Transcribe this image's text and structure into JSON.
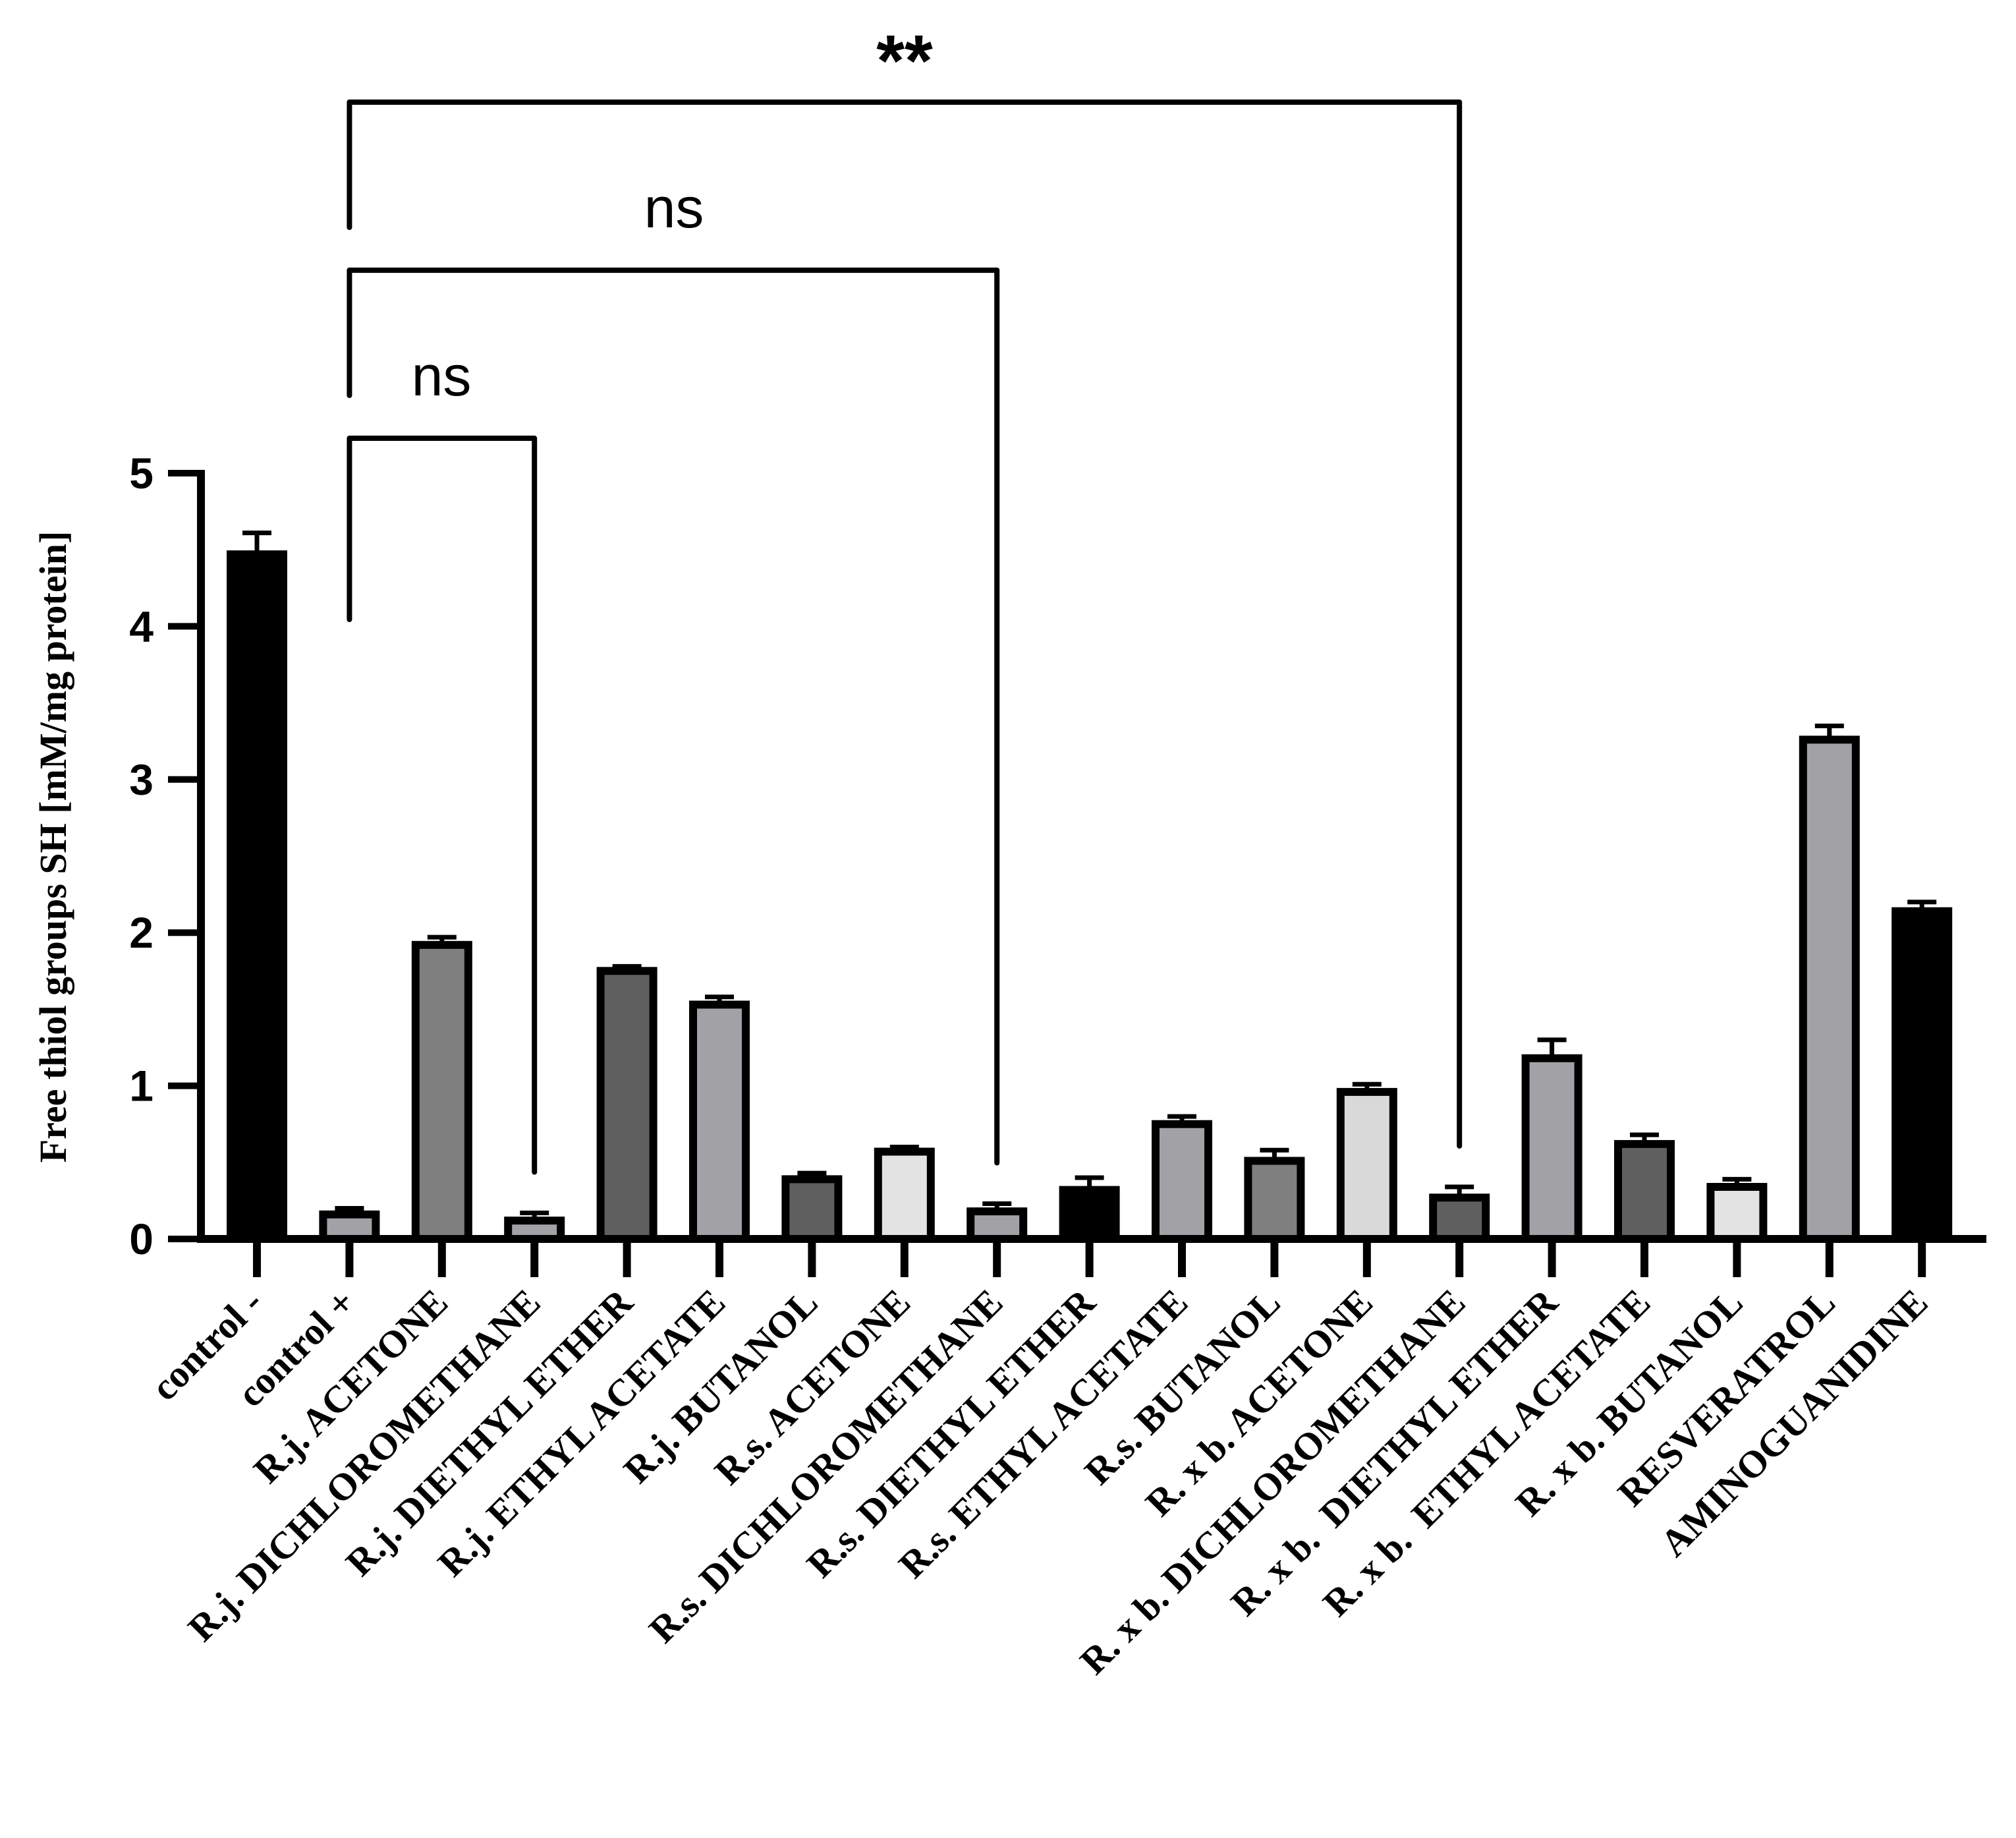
{
  "chart_data": {
    "type": "bar",
    "title": "",
    "xlabel": "",
    "ylabel": "Free thiol groups SH [mM/mg protein]",
    "ylim": [
      0,
      5
    ],
    "yticks": [
      0,
      1,
      2,
      3,
      4,
      5
    ],
    "grid": false,
    "categories": [
      "control -",
      "control +",
      "R.j. ACETONE",
      "R.j. DICHLOROMETHANE",
      "R.j. DIETHYL ETHER",
      "R.j. ETHYL ACETATE",
      "R.j. BUTANOL",
      "R.s. ACETONE",
      "R.s. DICHLOROMETHANE",
      "R.s. DIETHYL ETHER",
      "R.s. ETHYL ACETATE",
      "R.s. BUTANOL",
      "R. x b. ACETONE",
      "R. x b. DICHLOROMETHANE",
      "R. x b.  DIETHYL ETHER",
      "R. x b.  ETHYL ACETATE",
      "R. x b. BUTANOL",
      "RESVERATROL",
      "AMINOGUANIDINE"
    ],
    "values": [
      4.47,
      0.16,
      1.92,
      0.12,
      1.75,
      1.53,
      0.39,
      0.57,
      0.18,
      0.32,
      0.75,
      0.51,
      0.96,
      0.27,
      1.18,
      0.62,
      0.34,
      3.26,
      2.14
    ],
    "errors": [
      0.14,
      0.04,
      0.05,
      0.05,
      0.03,
      0.05,
      0.04,
      0.03,
      0.05,
      0.08,
      0.05,
      0.07,
      0.05,
      0.07,
      0.12,
      0.06,
      0.05,
      0.09,
      0.06
    ],
    "fills": [
      "#000000",
      "#a2a2a6",
      "#7f7f7f",
      "#a2a2a6",
      "#5f5f5f",
      "#a2a2a6",
      "#5f5f5f",
      "#e3e3e3",
      "#a2a2a6",
      "#000000",
      "#a2a2a6",
      "#7f7f7f",
      "#d9d9d9",
      "#5f5f5f",
      "#a2a2a6",
      "#5f5f5f",
      "#e3e3e3",
      "#a2a2a6",
      "#000000"
    ],
    "significance": [
      {
        "from": 1,
        "to": 3,
        "label": "ns"
      },
      {
        "from": 1,
        "to": 8,
        "label": "ns"
      },
      {
        "from": 1,
        "to": 13,
        "label": "**"
      }
    ]
  }
}
